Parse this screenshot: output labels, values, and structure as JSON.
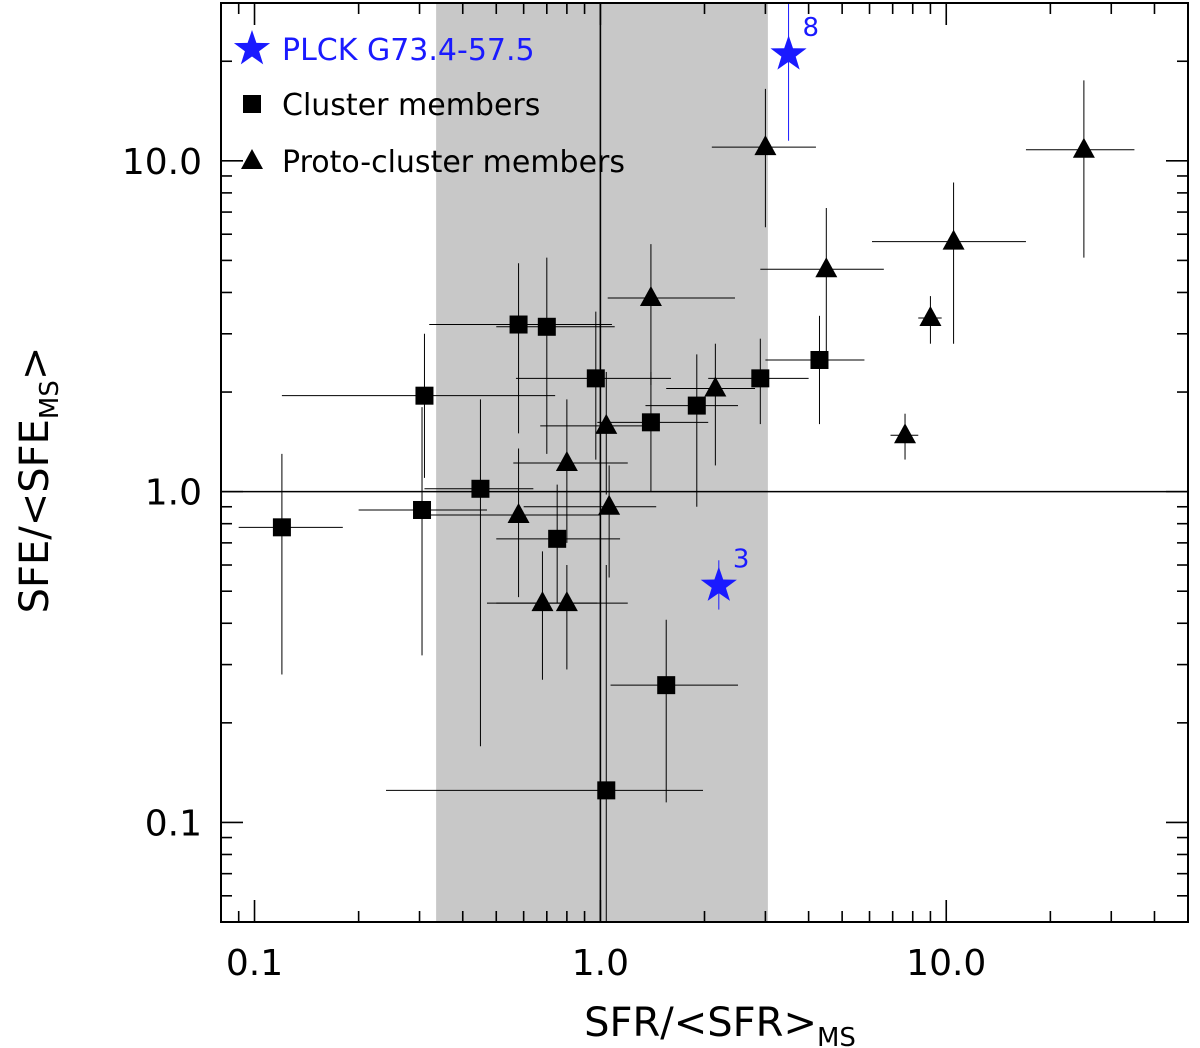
{
  "chart_data": {
    "type": "scatter",
    "x_scale": "log",
    "y_scale": "log",
    "xlim": [
      0.08,
      50
    ],
    "ylim": [
      0.05,
      30
    ],
    "grid": false,
    "xlabel": {
      "main": "SFR/<SFR>",
      "sub": "MS"
    },
    "ylabel": {
      "main": "SFE/<SFE",
      "sub": "MS",
      "suffix": ">"
    },
    "x_ticks": [
      {
        "value": 0.1,
        "label": "0.1"
      },
      {
        "value": 1.0,
        "label": "1.0"
      },
      {
        "value": 10.0,
        "label": "10.0"
      }
    ],
    "y_ticks": [
      {
        "value": 0.1,
        "label": "0.1"
      },
      {
        "value": 1.0,
        "label": "1.0"
      },
      {
        "value": 10.0,
        "label": "10.0"
      }
    ],
    "shaded_band": {
      "x_range": [
        0.335,
        3.05
      ],
      "color": "#c8c8c8"
    },
    "reference_lines": {
      "x": 1.0,
      "y": 1.0
    },
    "legend": {
      "placement": "top-left",
      "entries": [
        {
          "label": "PLCK G73.4-57.5",
          "marker": "star",
          "color": "#1a1aff"
        },
        {
          "label": "Cluster members",
          "marker": "square",
          "color": "#000000"
        },
        {
          "label": "Proto-cluster members",
          "marker": "triangle",
          "color": "#000000"
        }
      ]
    },
    "series": [
      {
        "name": "Cluster members",
        "marker": "square",
        "color": "#000000",
        "points": [
          {
            "x": 0.12,
            "y": 0.78,
            "xerr": [
              0.09,
              0.18
            ],
            "yerr": [
              0.28,
              1.3
            ]
          },
          {
            "x": 0.305,
            "y": 0.88,
            "xerr": [
              0.2,
              0.47
            ],
            "yerr": [
              0.32,
              1.8
            ]
          },
          {
            "x": 0.31,
            "y": 1.95,
            "xerr": [
              0.12,
              0.74
            ],
            "yerr": [
              1.1,
              3.0
            ]
          },
          {
            "x": 0.45,
            "y": 1.02,
            "xerr": [
              0.31,
              0.64
            ],
            "yerr": [
              0.17,
              1.9
            ]
          },
          {
            "x": 0.58,
            "y": 3.2,
            "xerr": [
              0.32,
              1.08
            ],
            "yerr": [
              1.5,
              4.9
            ]
          },
          {
            "x": 0.7,
            "y": 3.15,
            "xerr": [
              0.5,
              1.1
            ],
            "yerr": [
              1.3,
              5.1
            ]
          },
          {
            "x": 0.75,
            "y": 0.72,
            "xerr": [
              0.5,
              1.14
            ],
            "yerr": [
              0.46,
              1.05
            ]
          },
          {
            "x": 0.97,
            "y": 2.2,
            "xerr": [
              0.57,
              1.6
            ],
            "yerr": [
              1.25,
              3.5
            ]
          },
          {
            "x": 1.04,
            "y": 0.125,
            "xerr": [
              0.24,
              1.98
            ],
            "yerr": [
              0.05,
              0.6
            ]
          },
          {
            "x": 1.4,
            "y": 1.62,
            "xerr": [
              0.98,
              2.05
            ],
            "yerr": [
              1.0,
              2.3
            ]
          },
          {
            "x": 1.55,
            "y": 0.26,
            "xerr": [
              1.07,
              2.5
            ],
            "yerr": [
              0.115,
              0.41
            ]
          },
          {
            "x": 1.9,
            "y": 1.82,
            "xerr": [
              1.35,
              2.5
            ],
            "yerr": [
              0.9,
              2.6
            ]
          },
          {
            "x": 2.9,
            "y": 2.2,
            "xerr": [
              2.05,
              4.0
            ],
            "yerr": [
              1.6,
              2.9
            ]
          },
          {
            "x": 4.3,
            "y": 2.5,
            "xerr": [
              3.0,
              5.8
            ],
            "yerr": [
              1.6,
              3.4
            ]
          }
        ]
      },
      {
        "name": "Proto-cluster members",
        "marker": "triangle",
        "color": "#000000",
        "points": [
          {
            "x": 0.58,
            "y": 0.85,
            "xerr": [
              0.32,
              1.0
            ],
            "yerr": [
              0.48,
              1.35
            ]
          },
          {
            "x": 0.68,
            "y": 0.46,
            "xerr": [
              0.47,
              0.98
            ],
            "yerr": [
              0.27,
              0.66
            ]
          },
          {
            "x": 0.8,
            "y": 1.22,
            "xerr": [
              0.56,
              1.2
            ],
            "yerr": [
              0.7,
              1.9
            ]
          },
          {
            "x": 0.8,
            "y": 0.46,
            "xerr": [
              0.5,
              1.2
            ],
            "yerr": [
              0.29,
              0.6
            ]
          },
          {
            "x": 1.04,
            "y": 1.58,
            "xerr": [
              0.67,
              1.45
            ],
            "yerr": [
              0.98,
              2.3
            ]
          },
          {
            "x": 1.06,
            "y": 0.9,
            "xerr": [
              0.6,
              1.45
            ],
            "yerr": [
              0.55,
              1.2
            ]
          },
          {
            "x": 1.4,
            "y": 3.85,
            "xerr": [
              1.05,
              2.45
            ],
            "yerr": [
              2.1,
              5.6
            ]
          },
          {
            "x": 2.15,
            "y": 2.05,
            "xerr": [
              1.55,
              2.8
            ],
            "yerr": [
              1.2,
              2.8
            ]
          },
          {
            "x": 3.0,
            "y": 11.0,
            "xerr": [
              2.1,
              4.2
            ],
            "yerr": [
              6.3,
              16.5
            ]
          },
          {
            "x": 4.5,
            "y": 4.7,
            "xerr": [
              2.9,
              6.6
            ],
            "yerr": [
              2.5,
              7.2
            ]
          },
          {
            "x": 7.6,
            "y": 1.48,
            "xerr": [
              6.9,
              8.3
            ],
            "yerr": [
              1.25,
              1.72
            ]
          },
          {
            "x": 9.0,
            "y": 3.35,
            "xerr": [
              8.3,
              9.7
            ],
            "yerr": [
              2.8,
              3.9
            ]
          },
          {
            "x": 10.5,
            "y": 5.7,
            "xerr": [
              6.1,
              17.0
            ],
            "yerr": [
              2.8,
              8.6
            ]
          },
          {
            "x": 25.0,
            "y": 10.8,
            "xerr": [
              17.0,
              35.0
            ],
            "yerr": [
              5.1,
              17.5
            ]
          }
        ]
      },
      {
        "name": "PLCK G73.4-57.5",
        "marker": "star",
        "color": "#1a1aff",
        "points": [
          {
            "x": 2.2,
            "y": 0.52,
            "label": "3",
            "yerr": [
              0.44,
              0.62
            ]
          },
          {
            "x": 3.5,
            "y": 21.0,
            "label": "8",
            "yerr": [
              11.5,
              30.0
            ]
          }
        ]
      }
    ]
  }
}
